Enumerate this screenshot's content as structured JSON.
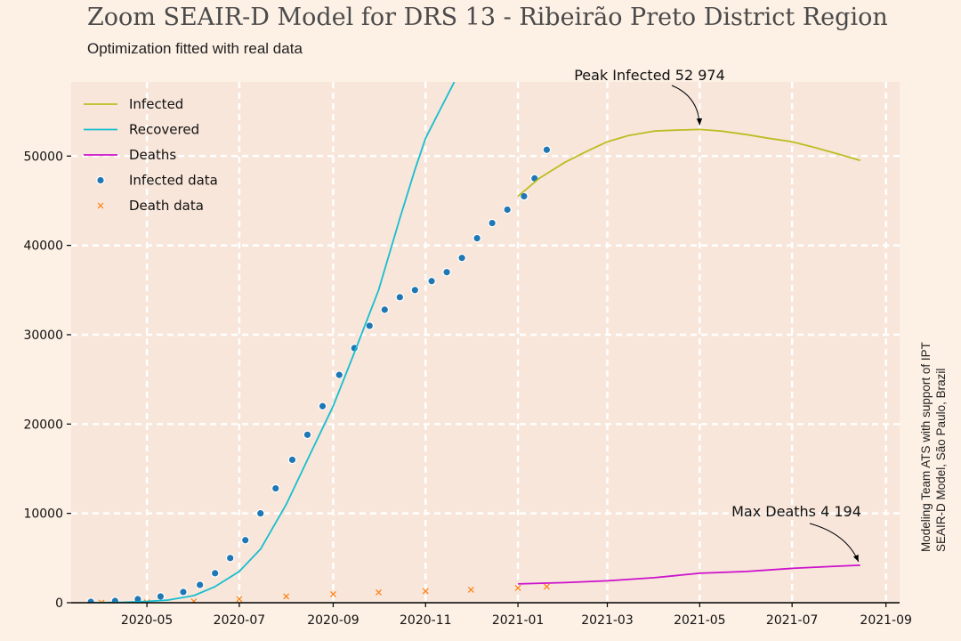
{
  "header": {
    "title": "Zoom SEAIR-D Model for DRS 13 - Ribeirão Preto District Region",
    "subtitle": "Optimization fitted with real data"
  },
  "credit": {
    "line1": "Modeling Team ATS with support of IPT",
    "line2": "SEAIR-D Model, São Paulo, Brazil"
  },
  "chart_data": {
    "type": "line",
    "title": "Zoom SEAIR-D Model for DRS 13 - Ribeirão Preto District Region",
    "subtitle": "Optimization fitted with real data",
    "xlabel": "",
    "ylabel": "",
    "xlim": [
      "2020-03-12",
      "2021-09-10"
    ],
    "ylim": [
      0,
      58300
    ],
    "grid": true,
    "legend_position": "top-left",
    "x_ticks": [
      "2020-05",
      "2020-07",
      "2020-09",
      "2020-11",
      "2021-01",
      "2021-03",
      "2021-05",
      "2021-07",
      "2021-09"
    ],
    "y_ticks": [
      0,
      10000,
      20000,
      30000,
      40000,
      50000
    ],
    "series": [
      {
        "name": "Infected",
        "kind": "line",
        "color": "#bcbd22",
        "x": [
          "2021-01-01",
          "2021-01-15",
          "2021-02-01",
          "2021-02-15",
          "2021-03-01",
          "2021-03-15",
          "2021-04-01",
          "2021-04-15",
          "2021-05-01",
          "2021-05-15",
          "2021-06-01",
          "2021-06-15",
          "2021-07-01",
          "2021-07-15",
          "2021-08-01",
          "2021-08-15"
        ],
        "y": [
          45500,
          47500,
          49300,
          50500,
          51600,
          52300,
          52800,
          52900,
          52974,
          52800,
          52400,
          52000,
          51600,
          51000,
          50200,
          49500
        ]
      },
      {
        "name": "Recovered",
        "kind": "line",
        "color": "#17becf",
        "x": [
          "2020-03-25",
          "2020-04-15",
          "2020-05-01",
          "2020-05-15",
          "2020-06-01",
          "2020-06-15",
          "2020-07-01",
          "2020-07-15",
          "2020-08-01",
          "2020-08-15",
          "2020-09-01",
          "2020-09-15",
          "2020-10-01",
          "2020-10-15",
          "2020-10-25",
          "2020-11-01",
          "2020-11-10",
          "2020-11-20"
        ],
        "y": [
          0,
          50,
          150,
          300,
          800,
          1800,
          3500,
          6000,
          11000,
          16000,
          22000,
          28000,
          35000,
          43000,
          48500,
          52000,
          55000,
          58300
        ]
      },
      {
        "name": "Deaths",
        "kind": "line",
        "color": "#cc11cc",
        "x": [
          "2021-01-01",
          "2021-02-01",
          "2021-03-01",
          "2021-04-01",
          "2021-05-01",
          "2021-06-01",
          "2021-07-01",
          "2021-08-01",
          "2021-08-15"
        ],
        "y": [
          2100,
          2250,
          2450,
          2800,
          3300,
          3500,
          3850,
          4100,
          4194
        ]
      },
      {
        "name": "Infected data",
        "kind": "scatter",
        "marker": "circle",
        "color": "#1f77b4",
        "x": [
          "2020-03-25",
          "2020-04-10",
          "2020-04-25",
          "2020-05-10",
          "2020-05-25",
          "2020-06-05",
          "2020-06-15",
          "2020-06-25",
          "2020-07-05",
          "2020-07-15",
          "2020-07-25",
          "2020-08-05",
          "2020-08-15",
          "2020-08-25",
          "2020-09-05",
          "2020-09-15",
          "2020-09-25",
          "2020-10-05",
          "2020-10-15",
          "2020-10-25",
          "2020-11-05",
          "2020-11-15",
          "2020-11-25",
          "2020-12-05",
          "2020-12-15",
          "2020-12-25",
          "2021-01-05",
          "2021-01-12",
          "2021-01-20"
        ],
        "y": [
          100,
          200,
          400,
          700,
          1200,
          2000,
          3300,
          5000,
          7000,
          10000,
          12800,
          16000,
          18800,
          22000,
          25500,
          28500,
          31000,
          32800,
          34200,
          35000,
          36000,
          37000,
          38600,
          40800,
          42500,
          44000,
          45500,
          47500,
          50700
        ]
      },
      {
        "name": "Death data",
        "kind": "scatter",
        "marker": "x",
        "color": "#ff7f0e",
        "x": [
          "2020-04-01",
          "2020-05-01",
          "2020-06-01",
          "2020-07-01",
          "2020-08-01",
          "2020-09-01",
          "2020-10-01",
          "2020-11-01",
          "2020-12-01",
          "2021-01-01",
          "2021-01-20"
        ],
        "y": [
          10,
          50,
          150,
          400,
          700,
          950,
          1150,
          1300,
          1450,
          1650,
          1800
        ]
      }
    ],
    "annotations": [
      {
        "text": "Peak Infected 52 974",
        "x": "2021-05-01",
        "y": 52974
      },
      {
        "text": "Max Deaths 4 194",
        "x": "2021-08-15",
        "y": 4194
      }
    ]
  }
}
